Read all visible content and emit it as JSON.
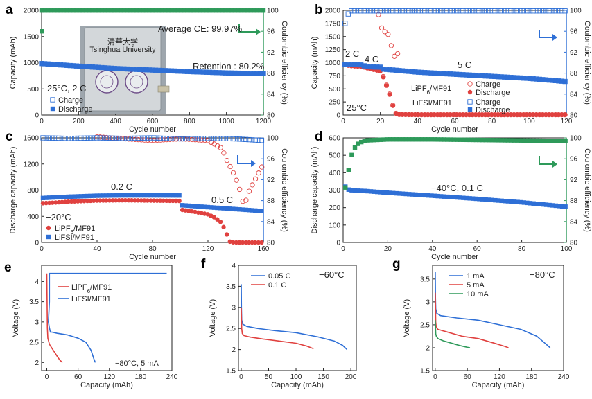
{
  "chart_data": [
    {
      "id": "a",
      "type": "scatter",
      "panel_label": "a",
      "xlabel": "Cycle number",
      "ylabel": "Capacity (mAh)",
      "y2label": "Coulombic efficiency (%)",
      "xlim": [
        0,
        1200
      ],
      "ylim": [
        0,
        2000
      ],
      "y2lim": [
        80,
        100
      ],
      "xticks": [
        0,
        200,
        400,
        600,
        800,
        1000,
        1200
      ],
      "yticks": [
        0,
        500,
        1000,
        1500,
        2000
      ],
      "y2ticks": [
        80,
        84,
        88,
        92,
        96,
        100
      ],
      "series": [
        {
          "name": "Charge",
          "axis": "left",
          "color": "#2e6fd6",
          "marker": "open-square",
          "x": [
            0,
            200,
            400,
            600,
            800,
            1000,
            1200
          ],
          "values": [
            985,
            935,
            890,
            860,
            830,
            805,
            790
          ]
        },
        {
          "name": "Discharge",
          "axis": "left",
          "color": "#2e6fd6",
          "marker": "filled-square",
          "x": [
            0,
            200,
            400,
            600,
            800,
            1000,
            1200
          ],
          "values": [
            980,
            930,
            885,
            855,
            825,
            800,
            785
          ]
        },
        {
          "name": "Coulombic efficiency",
          "axis": "right",
          "color": "#2e9a5a",
          "marker": "filled-square",
          "x": [
            0,
            200,
            400,
            600,
            800,
            1000,
            1200
          ],
          "values": [
            99.97,
            99.97,
            99.97,
            99.97,
            99.97,
            99.97,
            99.97
          ]
        }
      ],
      "extra_points": [
        {
          "axis": "right",
          "x": 2,
          "y": 96
        }
      ],
      "annotations": [
        "Average CE: 99.97%",
        "Retention : 80.2%",
        "25°C, 2 C"
      ],
      "legend": [
        "Charge",
        "Discharge"
      ],
      "legend_position": "bottom-left",
      "inset_photo_text": [
        "清華大学",
        "Tsinghua University"
      ]
    },
    {
      "id": "b",
      "type": "scatter",
      "panel_label": "b",
      "xlabel": "Cycle number",
      "ylabel": "Capacity (mAh)",
      "y2label": "Coulombic efficiency (%)",
      "xlim": [
        0,
        120
      ],
      "ylim": [
        0,
        2000
      ],
      "y2lim": [
        80,
        100
      ],
      "xticks": [
        0,
        20,
        40,
        60,
        80,
        100,
        120
      ],
      "yticks": [
        0,
        250,
        500,
        750,
        1000,
        1250,
        1500,
        1750,
        2000
      ],
      "y2ticks": [
        80,
        84,
        88,
        92,
        96,
        100
      ],
      "series": [
        {
          "name": "LiPF6/MF91 Charge",
          "axis": "left",
          "color": "#e0413f",
          "marker": "open-circle",
          "x": [
            1,
            5,
            10,
            12,
            15,
            18,
            20,
            21,
            22,
            23,
            24,
            25,
            26,
            27,
            28,
            30,
            40,
            60,
            80,
            100,
            120
          ],
          "values": [
            960,
            940,
            930,
            910,
            880,
            860,
            840,
            780,
            700,
            600,
            500,
            400,
            280,
            150,
            40,
            10,
            5,
            5,
            5,
            5,
            5
          ]
        },
        {
          "name": "LiPF6/MF91 Discharge",
          "axis": "left",
          "color": "#e0413f",
          "marker": "filled-circle",
          "x": [
            1,
            5,
            10,
            12,
            15,
            18,
            20,
            21,
            22,
            23,
            24,
            25,
            26,
            27,
            28,
            30,
            40,
            60,
            80,
            100,
            120
          ],
          "values": [
            955,
            935,
            925,
            905,
            875,
            855,
            835,
            770,
            690,
            590,
            490,
            390,
            270,
            140,
            35,
            8,
            4,
            4,
            4,
            4,
            4
          ]
        },
        {
          "name": "LiFSI/MF91 Charge",
          "axis": "left",
          "color": "#2e6fd6",
          "marker": "open-square",
          "x": [
            1,
            5,
            10,
            12,
            15,
            20,
            21,
            40,
            60,
            80,
            100,
            120
          ],
          "values": [
            970,
            965,
            960,
            930,
            920,
            915,
            880,
            820,
            780,
            740,
            700,
            640
          ]
        },
        {
          "name": "LiFSI/MF91 Discharge",
          "axis": "left",
          "color": "#2e6fd6",
          "marker": "filled-square",
          "x": [
            1,
            5,
            10,
            12,
            15,
            20,
            21,
            40,
            60,
            80,
            100,
            120
          ],
          "values": [
            965,
            960,
            955,
            925,
            915,
            910,
            875,
            815,
            775,
            735,
            695,
            635
          ]
        },
        {
          "name": "LiPF6/MF91 CE",
          "axis": "right",
          "color": "#e0413f",
          "marker": "open-circle",
          "x": [
            19,
            20,
            21,
            22,
            23,
            24,
            25,
            26,
            27,
            28,
            29,
            30
          ],
          "values": [
            99.2,
            97.0,
            96.5,
            96.0,
            95.8,
            95.5,
            94.8,
            93.0,
            91.5,
            91.0,
            92.0,
            91.0
          ]
        },
        {
          "name": "LiFSI/MF91 CE",
          "axis": "right",
          "color": "#2e6fd6",
          "marker": "open-square",
          "x": [
            1,
            2,
            4,
            6,
            8,
            10,
            20,
            40,
            60,
            80,
            100,
            120
          ],
          "values": [
            97.5,
            99.0,
            99.9,
            99.9,
            99.9,
            99.9,
            99.9,
            99.9,
            99.9,
            99.9,
            99.9,
            99.9
          ]
        }
      ],
      "annotations": [
        "2 C",
        "4 C",
        "5 C",
        "25°C"
      ],
      "legend": [
        "Charge",
        "Discharge",
        "Charge",
        "Discharge"
      ],
      "legend_groups": [
        "LiPF6/MF91",
        "LiFSI/MF91"
      ],
      "legend_position": "bottom-right"
    },
    {
      "id": "c",
      "type": "scatter",
      "panel_label": "c",
      "xlabel": "Cycle number",
      "ylabel": "Discharge capacity (mAh)",
      "y2label": "Coulombic efficiency (%)",
      "xlim": [
        0,
        160
      ],
      "ylim": [
        0,
        1600
      ],
      "y2lim": [
        80,
        100
      ],
      "xticks": [
        0,
        40,
        80,
        120,
        160
      ],
      "yticks": [
        0,
        400,
        800,
        1200,
        1600
      ],
      "y2ticks": [
        80,
        84,
        88,
        92,
        96,
        100
      ],
      "series": [
        {
          "name": "LiPF6/MF91",
          "axis": "left",
          "color": "#e0413f",
          "marker": "filled-circle",
          "x": [
            1,
            10,
            20,
            40,
            60,
            80,
            100,
            101,
            110,
            120,
            125,
            130,
            133,
            136,
            140,
            160
          ],
          "values": [
            600,
            610,
            625,
            640,
            645,
            640,
            635,
            500,
            470,
            430,
            380,
            300,
            150,
            5,
            0,
            0
          ]
        },
        {
          "name": "LiFSI/MF91",
          "axis": "left",
          "color": "#2e6fd6",
          "marker": "filled-square",
          "x": [
            1,
            10,
            20,
            40,
            60,
            80,
            100,
            101,
            120,
            140,
            160
          ],
          "values": [
            680,
            690,
            700,
            715,
            720,
            720,
            718,
            570,
            540,
            510,
            480
          ]
        },
        {
          "name": "LiPF6/MF91 CE",
          "axis": "right",
          "color": "#e0413f",
          "marker": "open-circle",
          "x": [
            40,
            50,
            60,
            80,
            100,
            120,
            130,
            134,
            138,
            142,
            146,
            150,
            155,
            160
          ],
          "values": [
            100.2,
            100.0,
            99.8,
            99.5,
            99.8,
            99.5,
            98.0,
            95.5,
            93.5,
            91.0,
            87.0,
            90.0,
            92.5,
            95.0
          ]
        },
        {
          "name": "LiFSI/MF91 CE",
          "axis": "right",
          "color": "#2e6fd6",
          "marker": "open-square",
          "x": [
            1,
            20,
            40,
            60,
            80,
            100,
            120,
            140,
            160
          ],
          "values": [
            100.0,
            99.9,
            100.0,
            99.9,
            100.0,
            99.8,
            99.9,
            99.8,
            99.5
          ]
        }
      ],
      "annotations": [
        "0.2 C",
        "0.5 C",
        "−20°C"
      ],
      "legend": [
        "LiPF6/MF91",
        "LiFSI/MF91"
      ],
      "legend_position": "bottom-left"
    },
    {
      "id": "d",
      "type": "scatter",
      "panel_label": "d",
      "xlabel": "Cycle number",
      "ylabel": "Discharge capacity (mAh)",
      "y2label": "Coulombic efficiency (%)",
      "xlim": [
        0,
        100
      ],
      "ylim": [
        0,
        600
      ],
      "y2lim": [
        80,
        100
      ],
      "xticks": [
        0,
        20,
        40,
        60,
        80,
        100
      ],
      "yticks": [
        0,
        100,
        200,
        300,
        400,
        500,
        600
      ],
      "y2ticks": [
        80,
        84,
        88,
        92,
        96,
        100
      ],
      "series": [
        {
          "name": "Discharge capacity",
          "axis": "left",
          "color": "#2e6fd6",
          "marker": "filled-square",
          "x": [
            1,
            2,
            3,
            5,
            10,
            20,
            40,
            60,
            80,
            100
          ],
          "values": [
            320,
            305,
            300,
            298,
            295,
            285,
            268,
            250,
            230,
            205
          ]
        },
        {
          "name": "Coulombic efficiency",
          "axis": "right",
          "color": "#2e9a5a",
          "marker": "filled-square",
          "x": [
            1,
            2,
            3,
            4,
            5,
            7,
            10,
            15,
            20,
            40,
            60,
            80,
            100
          ],
          "values": [
            90.5,
            93.0,
            95.0,
            97.0,
            98.0,
            99.0,
            99.5,
            99.6,
            99.7,
            99.7,
            99.6,
            99.5,
            99.4
          ]
        }
      ],
      "annotations": [
        "−40°C, 0.1 C"
      ]
    },
    {
      "id": "e",
      "type": "line",
      "panel_label": "e",
      "xlabel": "Capacity (mAh)",
      "ylabel": "Voltage (V)",
      "xlim": [
        -10,
        240
      ],
      "ylim": [
        1.8,
        4.4
      ],
      "xticks": [
        0,
        60,
        120,
        180,
        240
      ],
      "yticks": [
        2.0,
        2.5,
        3.0,
        3.5,
        4.0
      ],
      "series": [
        {
          "name": "LiPF6/MF91",
          "color": "#e0413f",
          "x": [
            0,
            1,
            2,
            5,
            10,
            15,
            20,
            25,
            30
          ],
          "values": [
            4.2,
            2.85,
            2.6,
            2.45,
            2.35,
            2.25,
            2.15,
            2.06,
            2.0
          ]
        },
        {
          "name": "LiFSI/MF91",
          "color": "#2e6fd6",
          "x": [
            230,
            5,
            5,
            3,
            5,
            7,
            10,
            20,
            40,
            60,
            75,
            85,
            90,
            93
          ],
          "values": [
            4.2,
            4.2,
            3.5,
            3.0,
            2.85,
            2.75,
            2.75,
            2.72,
            2.68,
            2.6,
            2.5,
            2.3,
            2.1,
            2.0
          ]
        }
      ],
      "annotations": [
        "−80°C, 5 mA"
      ],
      "legend": [
        "LiPF6/MF91",
        "LiFSI/MF91"
      ],
      "legend_position": "top-right"
    },
    {
      "id": "f",
      "type": "line",
      "panel_label": "f",
      "xlabel": "Capacity (mAh)",
      "ylabel": "Voltage (V)",
      "xlim": [
        -5,
        210
      ],
      "ylim": [
        1.5,
        4.0
      ],
      "xticks": [
        0,
        50,
        100,
        150,
        200
      ],
      "yticks": [
        1.5,
        2.0,
        2.5,
        3.0,
        3.5,
        4.0
      ],
      "series": [
        {
          "name": "0.05 C",
          "color": "#2e6fd6",
          "x": [
            0,
            0.5,
            1,
            3,
            10,
            30,
            60,
            100,
            140,
            170,
            185,
            193
          ],
          "values": [
            3.55,
            3.0,
            2.7,
            2.6,
            2.55,
            2.5,
            2.45,
            2.4,
            2.3,
            2.2,
            2.1,
            2.0
          ]
        },
        {
          "name": "0.1 C",
          "color": "#e0413f",
          "x": [
            0,
            1,
            2,
            5,
            15,
            40,
            70,
            100,
            120,
            132
          ],
          "values": [
            3.0,
            2.5,
            2.38,
            2.33,
            2.3,
            2.25,
            2.2,
            2.15,
            2.08,
            2.02
          ]
        }
      ],
      "annotations": [
        "−60°C"
      ],
      "legend": [
        "0.05 C",
        "0.1 C"
      ],
      "legend_position": "top-left"
    },
    {
      "id": "g",
      "type": "line",
      "panel_label": "g",
      "xlabel": "Capacity (mAh)",
      "ylabel": "Voltage (V)",
      "xlim": [
        -5,
        240
      ],
      "ylim": [
        1.5,
        3.8
      ],
      "xticks": [
        0,
        60,
        120,
        180,
        240
      ],
      "yticks": [
        1.5,
        2.0,
        2.5,
        3.0,
        3.5
      ],
      "series": [
        {
          "name": "1 mA",
          "color": "#2e6fd6",
          "x": [
            0,
            0.5,
            1,
            3,
            10,
            40,
            80,
            120,
            160,
            190,
            205,
            215
          ],
          "values": [
            3.65,
            3.1,
            2.85,
            2.75,
            2.7,
            2.65,
            2.6,
            2.5,
            2.4,
            2.25,
            2.1,
            2.0
          ]
        },
        {
          "name": "5 mA",
          "color": "#e0413f",
          "x": [
            0,
            1,
            2,
            5,
            20,
            50,
            80,
            110,
            130,
            137
          ],
          "values": [
            3.2,
            2.55,
            2.45,
            2.4,
            2.35,
            2.25,
            2.2,
            2.1,
            2.03,
            2.0
          ]
        },
        {
          "name": "10 mA",
          "color": "#2e9a5a",
          "x": [
            0,
            1,
            2,
            5,
            15,
            30,
            45,
            60,
            65
          ],
          "values": [
            2.6,
            2.3,
            2.25,
            2.2,
            2.15,
            2.1,
            2.05,
            2.01,
            2.0
          ]
        }
      ],
      "annotations": [
        "−80°C"
      ],
      "legend": [
        "1 mA",
        "5 mA",
        "10 mA"
      ],
      "legend_position": "top-left"
    }
  ]
}
